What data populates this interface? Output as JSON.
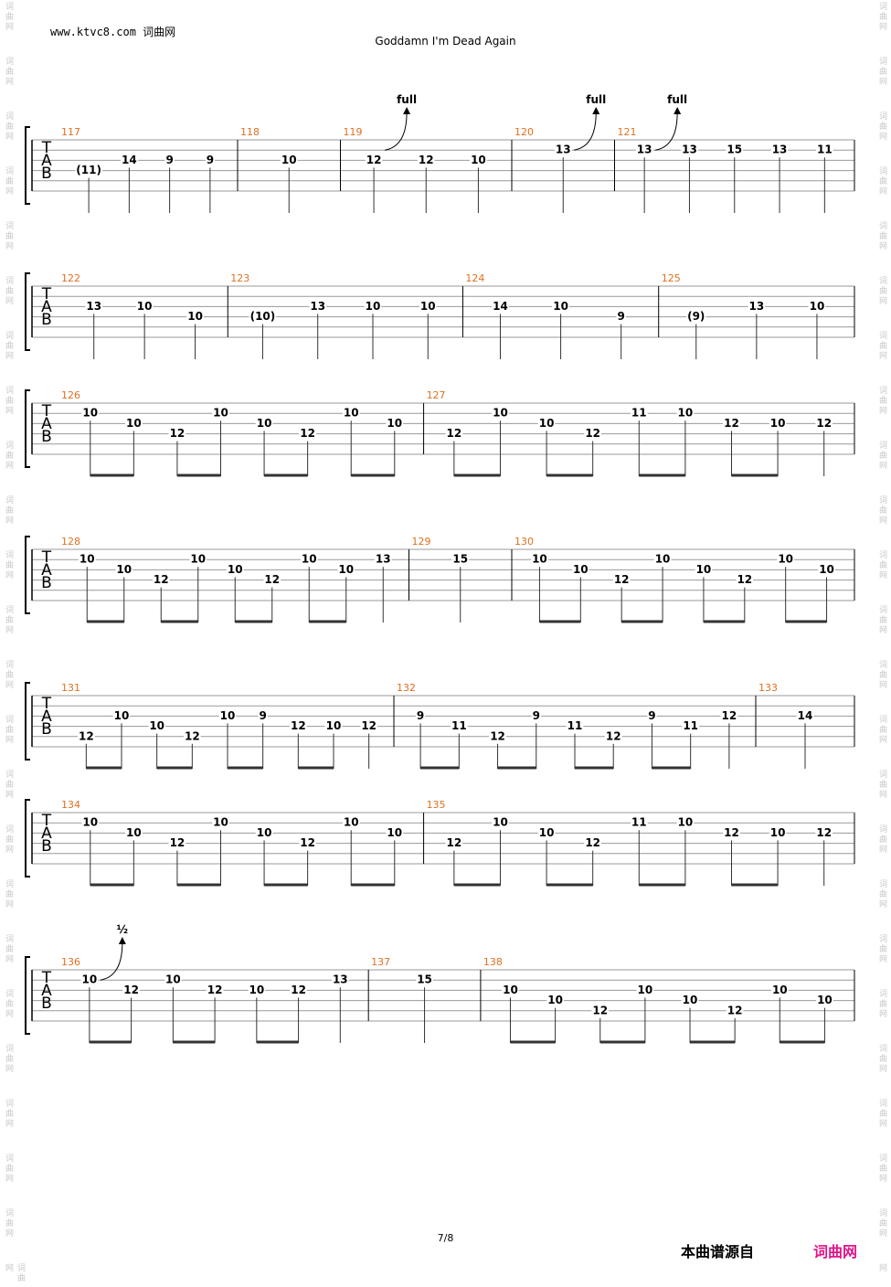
{
  "header": {
    "site": "www.ktvc8.com 词曲网",
    "title": "Goddamn I'm Dead Again"
  },
  "clef": "TAB",
  "watermark": "词曲网",
  "footer": {
    "page": "7/8",
    "source": "本曲谱源自",
    "brand": "词曲网"
  },
  "systems": [
    {
      "measures": [
        {
          "number": "117",
          "beats": [
            [
              null,
              null,
              null,
              "(11)",
              null,
              null
            ],
            [
              null,
              null,
              "14",
              null,
              null,
              null
            ],
            [
              null,
              null,
              "9",
              null,
              null,
              null
            ],
            [
              null,
              null,
              "9",
              null,
              null,
              null
            ]
          ]
        },
        {
          "number": "118",
          "beats": [
            [
              null,
              null,
              "10",
              null,
              null,
              null
            ]
          ]
        },
        {
          "number": "119",
          "beats": [
            [
              null,
              null,
              "12",
              null,
              null,
              null
            ],
            [
              null,
              null,
              "12",
              null,
              null,
              null
            ],
            [
              null,
              null,
              "10",
              null,
              null,
              null
            ]
          ],
          "bends": [
            {
              "beat": 0,
              "label": "full"
            }
          ]
        },
        {
          "number": "120",
          "beats": [
            [
              null,
              "13",
              null,
              null,
              null,
              null
            ]
          ],
          "bends": [
            {
              "beat": 0,
              "label": "full"
            }
          ]
        },
        {
          "number": "121",
          "beats": [
            [
              null,
              "13",
              null,
              null,
              null,
              null
            ],
            [
              null,
              "13",
              null,
              null,
              null,
              null
            ],
            [
              null,
              "15",
              null,
              null,
              null,
              null
            ],
            [
              null,
              "13",
              null,
              null,
              null,
              null
            ],
            [
              null,
              "11",
              null,
              null,
              null,
              null
            ]
          ],
          "bends": [
            {
              "beat": 0,
              "label": "full"
            }
          ]
        }
      ]
    },
    {
      "measures": [
        {
          "number": "122",
          "beats": [
            [
              null,
              null,
              "13",
              null,
              null,
              null
            ],
            [
              null,
              null,
              "10",
              null,
              null,
              null
            ],
            [
              null,
              null,
              null,
              "10",
              null,
              null
            ]
          ]
        },
        {
          "number": "123",
          "beats": [
            [
              null,
              null,
              null,
              "(10)",
              null,
              null
            ],
            [
              null,
              null,
              "13",
              null,
              null,
              null
            ],
            [
              null,
              null,
              "10",
              null,
              null,
              null
            ],
            [
              null,
              null,
              "10",
              null,
              null,
              null
            ]
          ]
        },
        {
          "number": "124",
          "beats": [
            [
              null,
              null,
              "14",
              null,
              null,
              null
            ],
            [
              null,
              null,
              "10",
              null,
              null,
              null
            ],
            [
              null,
              null,
              null,
              "9",
              null,
              null
            ]
          ]
        },
        {
          "number": "125",
          "beats": [
            [
              null,
              null,
              null,
              "(9)",
              null,
              null
            ],
            [
              null,
              null,
              "13",
              null,
              null,
              null
            ],
            [
              null,
              null,
              "10",
              null,
              null,
              null
            ]
          ]
        }
      ]
    },
    {
      "measures": [
        {
          "number": "126",
          "beats": [
            [
              null,
              "10",
              null,
              null,
              null,
              null
            ],
            [
              null,
              null,
              "10",
              null,
              null,
              null
            ],
            [
              null,
              null,
              null,
              "12",
              null,
              null
            ],
            [
              null,
              "10",
              null,
              null,
              null,
              null
            ],
            [
              null,
              null,
              "10",
              null,
              null,
              null
            ],
            [
              null,
              null,
              null,
              "12",
              null,
              null
            ],
            [
              null,
              "10",
              null,
              null,
              null,
              null
            ],
            [
              null,
              null,
              "10",
              null,
              null,
              null
            ]
          ]
        },
        {
          "number": "127",
          "beats": [
            [
              null,
              null,
              null,
              "12",
              null,
              null
            ],
            [
              null,
              "10",
              null,
              null,
              null,
              null
            ],
            [
              null,
              null,
              "10",
              null,
              null,
              null
            ],
            [
              null,
              null,
              null,
              "12",
              null,
              null
            ],
            [
              null,
              "11",
              null,
              null,
              null,
              null
            ],
            [
              null,
              "10",
              null,
              null,
              null,
              null
            ],
            [
              null,
              null,
              "12",
              null,
              null,
              null
            ],
            [
              null,
              null,
              "10",
              null,
              null,
              null
            ],
            [
              null,
              null,
              "12",
              null,
              null,
              null
            ]
          ]
        }
      ]
    },
    {
      "measures": [
        {
          "number": "128",
          "beats": [
            [
              null,
              "10",
              null,
              null,
              null,
              null
            ],
            [
              null,
              null,
              "10",
              null,
              null,
              null
            ],
            [
              null,
              null,
              null,
              "12",
              null,
              null
            ],
            [
              null,
              "10",
              null,
              null,
              null,
              null
            ],
            [
              null,
              null,
              "10",
              null,
              null,
              null
            ],
            [
              null,
              null,
              null,
              "12",
              null,
              null
            ],
            [
              null,
              "10",
              null,
              null,
              null,
              null
            ],
            [
              null,
              null,
              "10",
              null,
              null,
              null
            ],
            [
              null,
              "13",
              null,
              null,
              null,
              null
            ]
          ]
        },
        {
          "number": "129",
          "beats": [
            [
              null,
              "15",
              null,
              null,
              null,
              null
            ]
          ]
        },
        {
          "number": "130",
          "beats": [
            [
              null,
              "10",
              null,
              null,
              null,
              null
            ],
            [
              null,
              null,
              "10",
              null,
              null,
              null
            ],
            [
              null,
              null,
              null,
              "12",
              null,
              null
            ],
            [
              null,
              "10",
              null,
              null,
              null,
              null
            ],
            [
              null,
              null,
              "10",
              null,
              null,
              null
            ],
            [
              null,
              null,
              null,
              "12",
              null,
              null
            ],
            [
              null,
              "10",
              null,
              null,
              null,
              null
            ],
            [
              null,
              null,
              "10",
              null,
              null,
              null
            ]
          ]
        }
      ]
    },
    {
      "measures": [
        {
          "number": "131",
          "beats": [
            [
              null,
              null,
              null,
              null,
              "12",
              null
            ],
            [
              null,
              null,
              "10",
              null,
              null,
              null
            ],
            [
              null,
              null,
              null,
              "10",
              null,
              null
            ],
            [
              null,
              null,
              null,
              null,
              "12",
              null
            ],
            [
              null,
              null,
              "10",
              null,
              null,
              null
            ],
            [
              null,
              null,
              "9",
              null,
              null,
              null
            ],
            [
              null,
              null,
              null,
              "12",
              null,
              null
            ],
            [
              null,
              null,
              null,
              "10",
              null,
              null
            ],
            [
              null,
              null,
              null,
              "12",
              null,
              null
            ]
          ]
        },
        {
          "number": "132",
          "beats": [
            [
              null,
              null,
              "9",
              null,
              null,
              null
            ],
            [
              null,
              null,
              null,
              "11",
              null,
              null
            ],
            [
              null,
              null,
              null,
              null,
              "12",
              null
            ],
            [
              null,
              null,
              "9",
              null,
              null,
              null
            ],
            [
              null,
              null,
              null,
              "11",
              null,
              null
            ],
            [
              null,
              null,
              null,
              null,
              "12",
              null
            ],
            [
              null,
              null,
              "9",
              null,
              null,
              null
            ],
            [
              null,
              null,
              null,
              "11",
              null,
              null
            ],
            [
              null,
              null,
              "12",
              null,
              null,
              null
            ]
          ]
        },
        {
          "number": "133",
          "beats": [
            [
              null,
              null,
              "14",
              null,
              null,
              null
            ]
          ]
        }
      ]
    },
    {
      "measures": [
        {
          "number": "134",
          "beats": [
            [
              null,
              "10",
              null,
              null,
              null,
              null
            ],
            [
              null,
              null,
              "10",
              null,
              null,
              null
            ],
            [
              null,
              null,
              null,
              "12",
              null,
              null
            ],
            [
              null,
              "10",
              null,
              null,
              null,
              null
            ],
            [
              null,
              null,
              "10",
              null,
              null,
              null
            ],
            [
              null,
              null,
              null,
              "12",
              null,
              null
            ],
            [
              null,
              "10",
              null,
              null,
              null,
              null
            ],
            [
              null,
              null,
              "10",
              null,
              null,
              null
            ]
          ]
        },
        {
          "number": "135",
          "beats": [
            [
              null,
              null,
              null,
              "12",
              null,
              null
            ],
            [
              null,
              "10",
              null,
              null,
              null,
              null
            ],
            [
              null,
              null,
              "10",
              null,
              null,
              null
            ],
            [
              null,
              null,
              null,
              "12",
              null,
              null
            ],
            [
              null,
              "11",
              null,
              null,
              null,
              null
            ],
            [
              null,
              "10",
              null,
              null,
              null,
              null
            ],
            [
              null,
              null,
              "12",
              null,
              null,
              null
            ],
            [
              null,
              null,
              "10",
              null,
              null,
              null
            ],
            [
              null,
              null,
              "12",
              null,
              null,
              null
            ]
          ]
        }
      ]
    },
    {
      "measures": [
        {
          "number": "136",
          "beats": [
            [
              null,
              "10",
              null,
              null,
              null,
              null
            ],
            [
              null,
              null,
              "12",
              null,
              null,
              null
            ],
            [
              null,
              "10",
              null,
              null,
              null,
              null
            ],
            [
              null,
              null,
              "12",
              null,
              null,
              null
            ],
            [
              null,
              null,
              "10",
              null,
              null,
              null
            ],
            [
              null,
              null,
              "12",
              null,
              null,
              null
            ],
            [
              null,
              "13",
              null,
              null,
              null,
              null
            ]
          ],
          "bends": [
            {
              "beat": 0,
              "label": "½"
            }
          ]
        },
        {
          "number": "137",
          "beats": [
            [
              null,
              "15",
              null,
              null,
              null,
              null
            ]
          ]
        },
        {
          "number": "138",
          "beats": [
            [
              null,
              null,
              "10",
              null,
              null,
              null
            ],
            [
              null,
              null,
              null,
              "10",
              null,
              null
            ],
            [
              null,
              null,
              null,
              null,
              "12",
              null
            ],
            [
              null,
              null,
              "10",
              null,
              null,
              null
            ],
            [
              null,
              null,
              null,
              "10",
              null,
              null
            ],
            [
              null,
              null,
              null,
              null,
              "12",
              null
            ],
            [
              null,
              null,
              "10",
              null,
              null,
              null
            ],
            [
              null,
              null,
              null,
              "10",
              null,
              null
            ]
          ]
        }
      ]
    }
  ]
}
